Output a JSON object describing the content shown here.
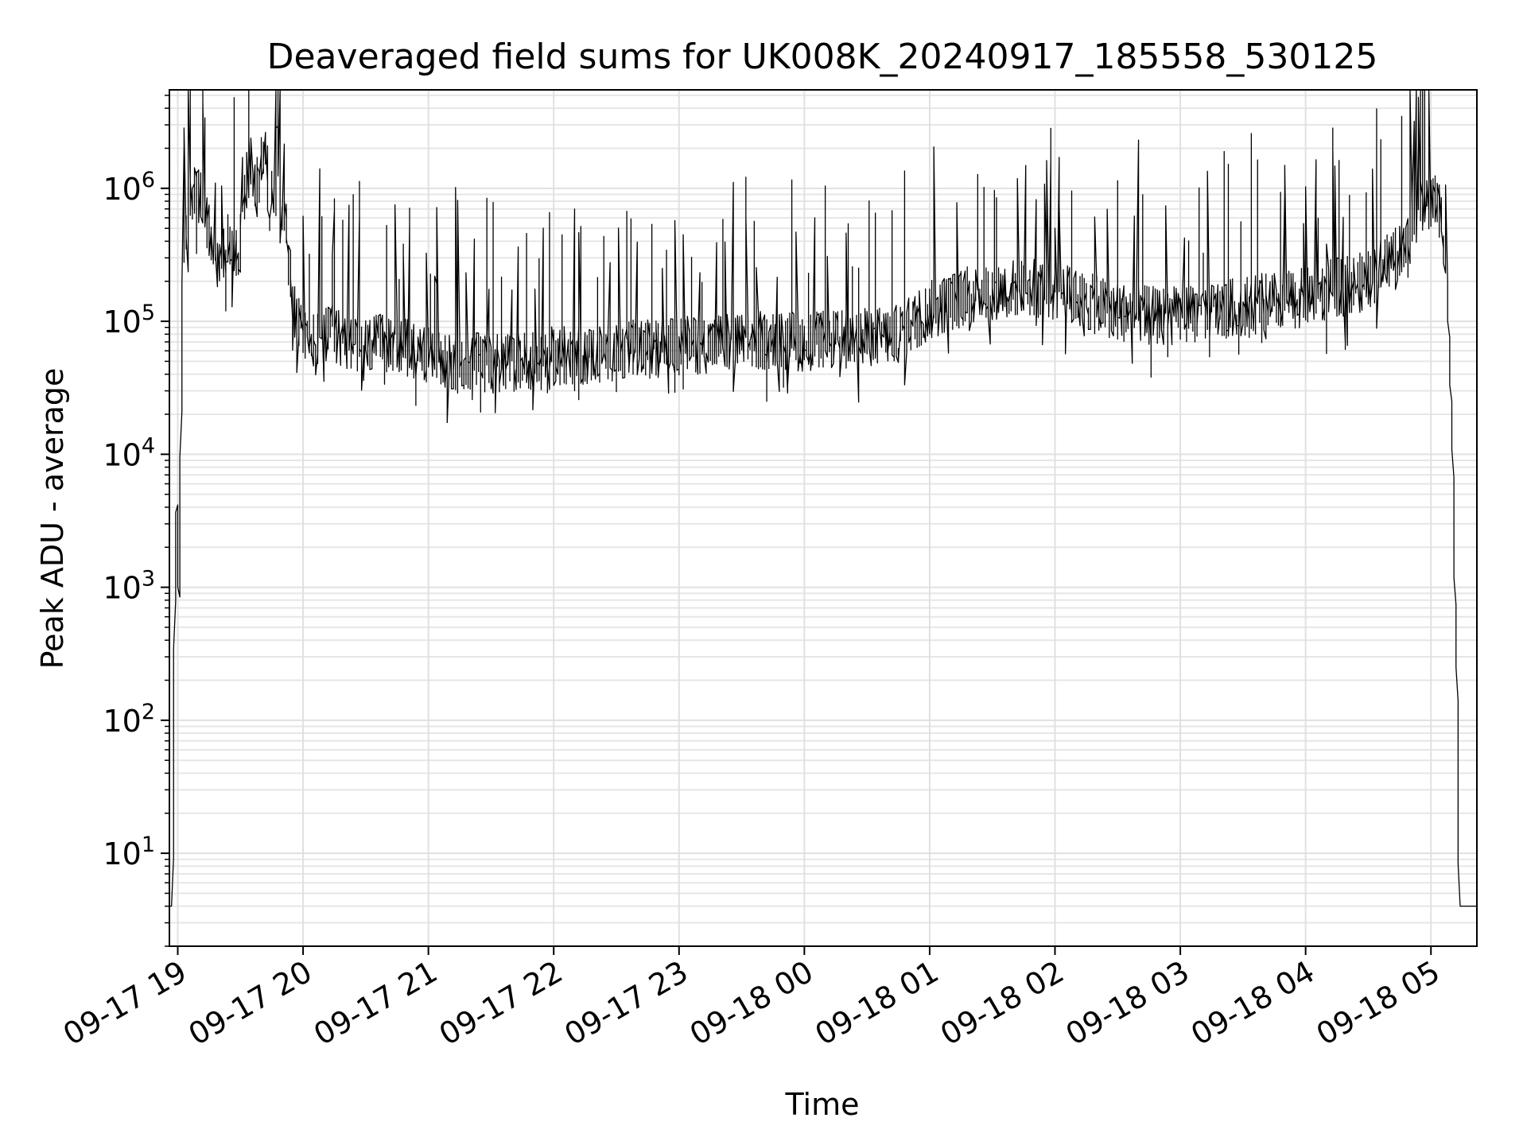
{
  "chart_data": {
    "type": "line",
    "title": "Deaveraged field sums for UK008K_20240917_185558_530125",
    "xlabel": "Time",
    "ylabel": "Peak ADU - average",
    "yscale": "log",
    "ylim": [
      2,
      5500000
    ],
    "xlim": [
      "2024-09-17 18:56",
      "2024-09-18 05:22"
    ],
    "grid": true,
    "x_ticks": [
      {
        "t": "2024-09-17 19:00",
        "label": "09-17 19"
      },
      {
        "t": "2024-09-17 20:00",
        "label": "09-17 20"
      },
      {
        "t": "2024-09-17 21:00",
        "label": "09-17 21"
      },
      {
        "t": "2024-09-17 22:00",
        "label": "09-17 22"
      },
      {
        "t": "2024-09-17 23:00",
        "label": "09-17 23"
      },
      {
        "t": "2024-09-18 00:00",
        "label": "09-18 00"
      },
      {
        "t": "2024-09-18 01:00",
        "label": "09-18 01"
      },
      {
        "t": "2024-09-18 02:00",
        "label": "09-18 02"
      },
      {
        "t": "2024-09-18 03:00",
        "label": "09-18 03"
      },
      {
        "t": "2024-09-18 04:00",
        "label": "09-18 04"
      },
      {
        "t": "2024-09-18 05:00",
        "label": "09-18 05"
      }
    ],
    "y_ticks": [
      {
        "value": 10,
        "base": "10",
        "exp": "1"
      },
      {
        "value": 100,
        "base": "10",
        "exp": "2"
      },
      {
        "value": 1000,
        "base": "10",
        "exp": "3"
      },
      {
        "value": 10000,
        "base": "10",
        "exp": "4"
      },
      {
        "value": 100000,
        "base": "10",
        "exp": "5"
      },
      {
        "value": 1000000,
        "base": "10",
        "exp": "6"
      }
    ],
    "series": [
      {
        "color": "#000000",
        "points": [
          [
            "2024-09-17 18:56",
            4
          ],
          [
            "2024-09-17 18:57",
            4
          ],
          [
            "2024-09-17 18:58",
            4
          ],
          [
            "2024-09-17 18:59",
            600
          ],
          [
            "2024-09-17 19:00",
            5000
          ],
          [
            "2024-09-17 19:01",
            700
          ],
          [
            "2024-09-17 19:02",
            20000
          ],
          [
            "2024-09-17 19:03",
            200000
          ],
          [
            "2024-09-17 19:04",
            450000
          ],
          [
            "2024-09-17 19:05",
            600000
          ],
          [
            "2024-09-17 19:06",
            800000
          ],
          [
            "2024-09-17 19:08",
            950000
          ],
          [
            "2024-09-17 19:10",
            900000
          ],
          [
            "2024-09-17 19:12",
            750000
          ],
          [
            "2024-09-17 19:15",
            500000
          ],
          [
            "2024-09-17 19:18",
            300000
          ],
          [
            "2024-09-17 19:20",
            250000
          ],
          [
            "2024-09-17 19:25",
            400000
          ],
          [
            "2024-09-17 19:30",
            350000
          ],
          [
            "2024-09-17 19:35",
            1800000
          ],
          [
            "2024-09-17 19:38",
            900000
          ],
          [
            "2024-09-17 19:42",
            2200000
          ],
          [
            "2024-09-17 19:45",
            700000
          ],
          [
            "2024-09-17 19:48",
            2000000
          ],
          [
            "2024-09-17 19:52",
            600000
          ],
          [
            "2024-09-17 19:55",
            150000
          ],
          [
            "2024-09-17 19:58",
            90000
          ],
          [
            "2024-09-17 20:05",
            70000
          ],
          [
            "2024-09-17 20:15",
            80000
          ],
          [
            "2024-09-17 20:30",
            65000
          ],
          [
            "2024-09-17 20:45",
            70000
          ],
          [
            "2024-09-17 21:00",
            55000
          ],
          [
            "2024-09-17 21:15",
            50000
          ],
          [
            "2024-09-17 21:30",
            48000
          ],
          [
            "2024-09-17 21:45",
            50000
          ],
          [
            "2024-09-17 22:00",
            55000
          ],
          [
            "2024-09-17 22:15",
            55000
          ],
          [
            "2024-09-17 22:30",
            60000
          ],
          [
            "2024-09-17 22:45",
            62000
          ],
          [
            "2024-09-17 23:00",
            65000
          ],
          [
            "2024-09-17 23:15",
            68000
          ],
          [
            "2024-09-17 23:30",
            70000
          ],
          [
            "2024-09-17 23:45",
            72000
          ],
          [
            "2024-09-18 00:00",
            70000
          ],
          [
            "2024-09-18 00:15",
            72000
          ],
          [
            "2024-09-18 00:30",
            75000
          ],
          [
            "2024-09-18 00:45",
            80000
          ],
          [
            "2024-09-18 01:00",
            120000
          ],
          [
            "2024-09-18 01:15",
            150000
          ],
          [
            "2024-09-18 01:30",
            170000
          ],
          [
            "2024-09-18 01:45",
            180000
          ],
          [
            "2024-09-18 02:00",
            170000
          ],
          [
            "2024-09-18 02:15",
            140000
          ],
          [
            "2024-09-18 02:30",
            120000
          ],
          [
            "2024-09-18 02:45",
            110000
          ],
          [
            "2024-09-18 03:00",
            110000
          ],
          [
            "2024-09-18 03:15",
            120000
          ],
          [
            "2024-09-18 03:30",
            130000
          ],
          [
            "2024-09-18 03:45",
            140000
          ],
          [
            "2024-09-18 04:00",
            150000
          ],
          [
            "2024-09-18 04:15",
            180000
          ],
          [
            "2024-09-18 04:30",
            200000
          ],
          [
            "2024-09-18 04:45",
            350000
          ],
          [
            "2024-09-18 04:52",
            600000
          ],
          [
            "2024-09-18 04:58",
            750000
          ],
          [
            "2024-09-18 05:02",
            800000
          ],
          [
            "2024-09-18 05:05",
            700000
          ],
          [
            "2024-09-18 05:07",
            400000
          ],
          [
            "2024-09-18 05:09",
            100000
          ],
          [
            "2024-09-18 05:11",
            10000
          ],
          [
            "2024-09-18 05:12",
            900
          ],
          [
            "2024-09-18 05:13",
            200
          ],
          [
            "2024-09-18 05:14",
            4
          ],
          [
            "2024-09-18 05:22",
            4
          ]
        ]
      }
    ]
  }
}
